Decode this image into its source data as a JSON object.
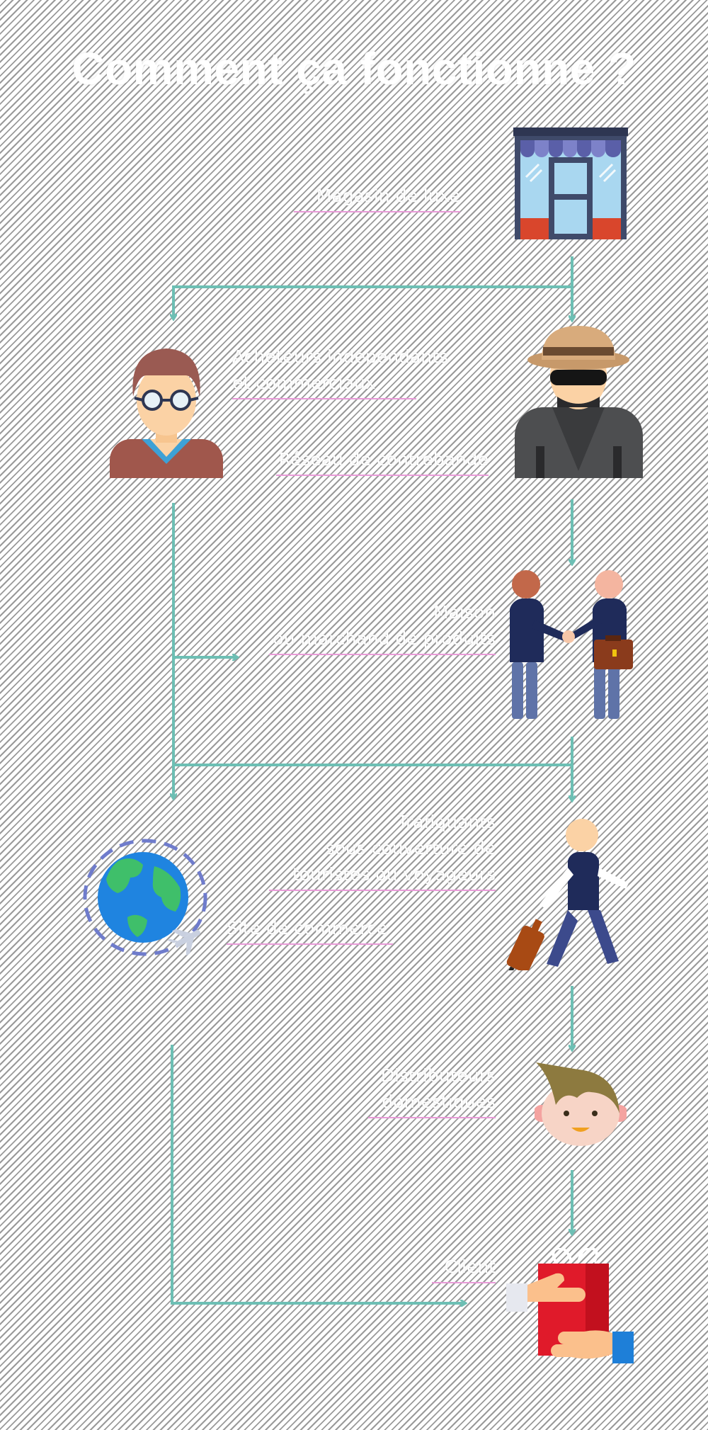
{
  "title": "Comment ça fonctionne ?",
  "labels": {
    "store": [
      "Magasin de luxe"
    ],
    "buyer": [
      "Acheteurs indépendants",
      "et commerciaux"
    ],
    "network": [
      "Réseau de contrebande"
    ],
    "delivery": [
      "Maison",
      "ou marchand de produits"
    ],
    "traffic": [
      "Trafiquants",
      "sous couverture de",
      "touristes ou voyageurs"
    ],
    "online": [
      "Site de commerce"
    ],
    "domestic": [
      "Distributeurs",
      "domestiques"
    ],
    "client": [
      "Client"
    ]
  },
  "colors": {
    "arrow": "#6dbfb4",
    "underline": "#e89bd8",
    "text": "#ffffff"
  },
  "icons": [
    "storefront-icon",
    "buyer-glasses-icon",
    "spy-hat-icon",
    "handshake-icon",
    "globe-plane-icon",
    "traveler-suitcase-icon",
    "boy-face-icon",
    "gift-handover-icon"
  ]
}
